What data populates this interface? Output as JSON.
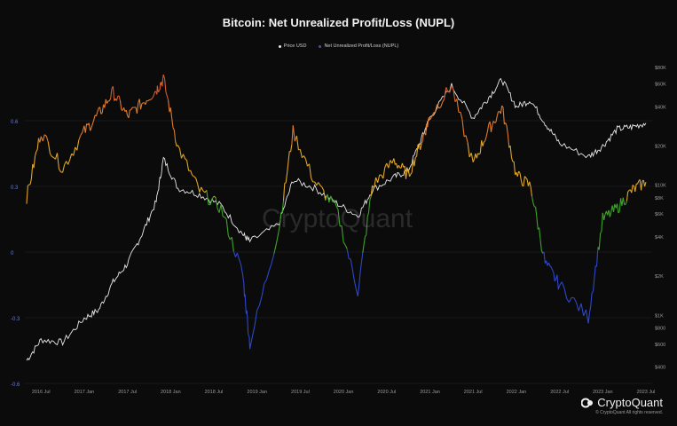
{
  "chart_data": {
    "type": "line",
    "title": "Bitcoin: Net Unrealized Profit/Loss (NUPL)",
    "legend": [
      {
        "name": "Price USD",
        "color": "#e8e8e8"
      },
      {
        "name": "Net Unrealized Profit/Loss (NUPL)",
        "color": "#3b4fd0"
      }
    ],
    "legend_placement": "top-center",
    "grid": true,
    "x_ticks": [
      "2016 Jul",
      "2017 Jan",
      "2017 Jul",
      "2018 Jan",
      "2018 Jul",
      "2019 Jan",
      "2019 Jul",
      "2020 Jan",
      "2020 Jul",
      "2021 Jan",
      "2021 Jul",
      "2022 Jan",
      "2022 Jul",
      "2023 Jan",
      "2023 Jul"
    ],
    "left_axis": {
      "label": "",
      "ylim": [
        -0.6,
        0.9
      ],
      "ticks": [
        "0.6",
        "0.3",
        "0",
        "-0.3",
        "-0.6"
      ]
    },
    "right_axis": {
      "label": "",
      "scale": "log",
      "ylim": [
        300,
        100000
      ],
      "ticks": [
        "$80K",
        "$60K",
        "$40K",
        "$20K",
        "$10K",
        "$8K",
        "$6K",
        "$4K",
        "$2K",
        "$1K",
        "$800",
        "$600",
        "$400"
      ]
    },
    "nupl_zone_colors": {
      "capitulation": "#2e47c9",
      "hope_fear": "#3fa32a",
      "optimism_anxiety": "#e0a526",
      "belief_denial": "#e07b2a",
      "euphoria_greed": "#d15a2c"
    },
    "series": [
      {
        "name": "Price USD",
        "color": "#e8e8e8",
        "x": [
          "2016-05",
          "2016-07",
          "2016-10",
          "2017-01",
          "2017-03",
          "2017-05",
          "2017-07",
          "2017-09",
          "2017-11",
          "2017-12",
          "2018-02",
          "2018-05",
          "2018-08",
          "2018-11",
          "2018-12",
          "2019-04",
          "2019-06",
          "2019-09",
          "2019-12",
          "2020-03",
          "2020-05",
          "2020-08",
          "2020-10",
          "2020-12",
          "2021-01",
          "2021-04",
          "2021-07",
          "2021-09",
          "2021-11",
          "2022-01",
          "2022-03",
          "2022-05",
          "2022-07",
          "2022-11",
          "2023-01",
          "2023-03",
          "2023-05",
          "2023-07"
        ],
        "y": [
          450,
          650,
          620,
          950,
          1100,
          1800,
          2500,
          4200,
          7500,
          16000,
          9500,
          8500,
          7000,
          4200,
          3700,
          5000,
          11000,
          9500,
          7300,
          5800,
          9200,
          11500,
          13000,
          24000,
          33000,
          58000,
          33000,
          46000,
          65000,
          40000,
          45000,
          30000,
          21000,
          16500,
          20000,
          27000,
          28000,
          30000
        ]
      },
      {
        "name": "Net Unrealized Profit/Loss (NUPL)",
        "color": "#3b4fd0",
        "x": [
          "2016-05",
          "2016-07",
          "2016-10",
          "2017-01",
          "2017-03",
          "2017-05",
          "2017-07",
          "2017-09",
          "2017-11",
          "2017-12",
          "2018-02",
          "2018-05",
          "2018-08",
          "2018-11",
          "2018-12",
          "2019-04",
          "2019-06",
          "2019-09",
          "2019-12",
          "2020-03",
          "2020-05",
          "2020-08",
          "2020-10",
          "2020-12",
          "2021-01",
          "2021-04",
          "2021-07",
          "2021-09",
          "2021-11",
          "2022-01",
          "2022-03",
          "2022-05",
          "2022-07",
          "2022-11",
          "2023-01",
          "2023-03",
          "2023-05",
          "2023-07"
        ],
        "y": [
          0.25,
          0.55,
          0.38,
          0.55,
          0.63,
          0.73,
          0.62,
          0.68,
          0.74,
          0.79,
          0.48,
          0.28,
          0.2,
          -0.1,
          -0.42,
          0.1,
          0.55,
          0.32,
          0.2,
          -0.18,
          0.3,
          0.42,
          0.35,
          0.52,
          0.62,
          0.76,
          0.4,
          0.55,
          0.66,
          0.35,
          0.3,
          -0.05,
          -0.15,
          -0.3,
          0.15,
          0.2,
          0.28,
          0.32
        ]
      }
    ]
  },
  "watermark": "CryptoQuant",
  "brand": {
    "name": "CryptoQuant",
    "copyright": "© CryptoQuant All rights reserved."
  }
}
